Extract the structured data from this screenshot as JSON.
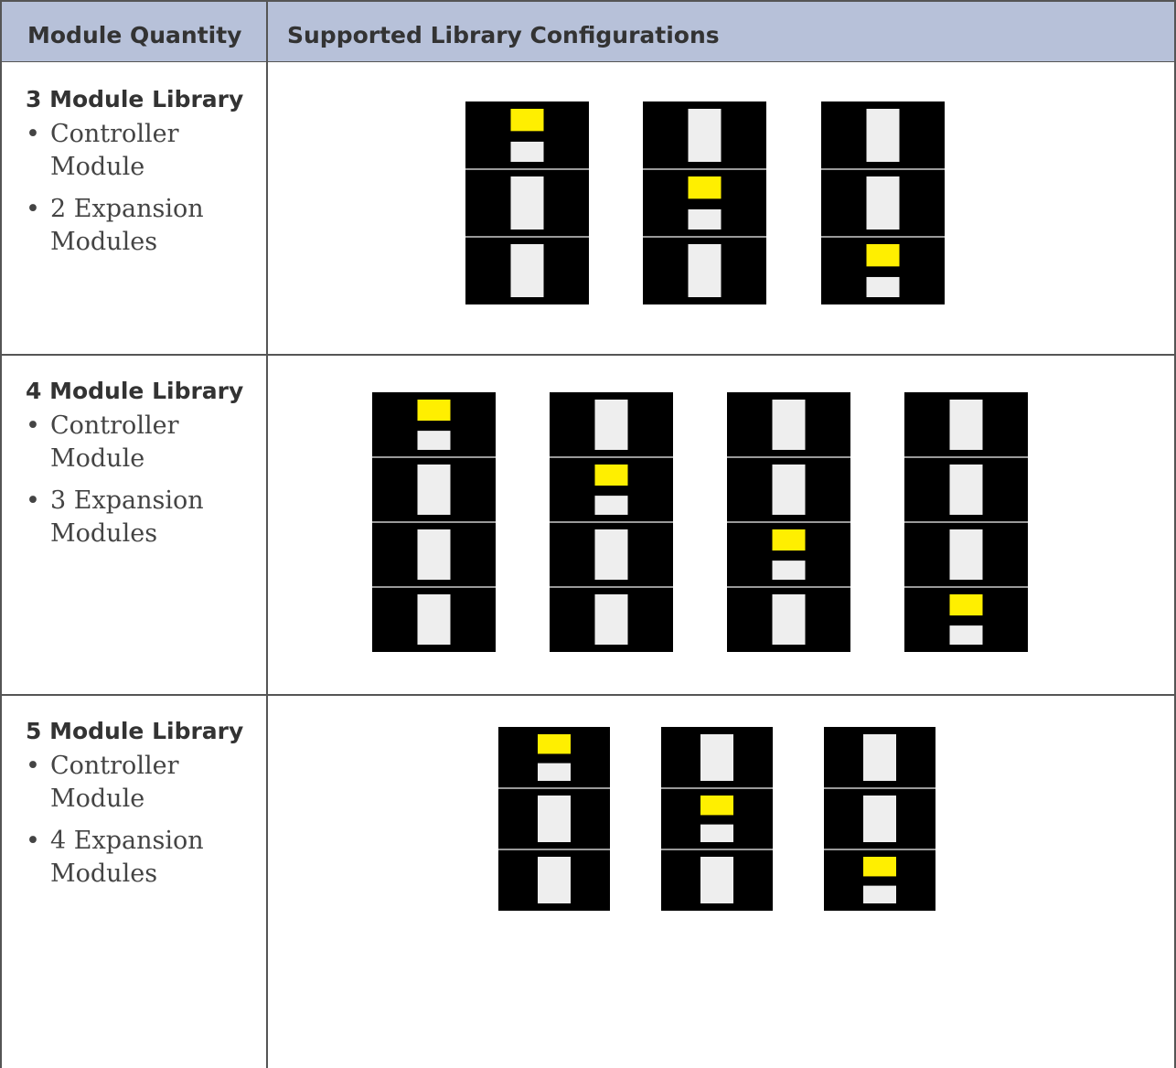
{
  "header": {
    "col1": "Module Quantity",
    "col2": "Supported Library Configurations"
  },
  "rows": [
    {
      "title": "3 Module Library",
      "items": [
        "Controller Module",
        "2 Expansion Modules"
      ]
    },
    {
      "title": "4 Module Library",
      "items": [
        "Controller Module",
        "3 Expansion Modules"
      ]
    },
    {
      "title": "5 Module Library",
      "items": [
        "Controller Module",
        "4 Expansion Modules"
      ]
    }
  ]
}
